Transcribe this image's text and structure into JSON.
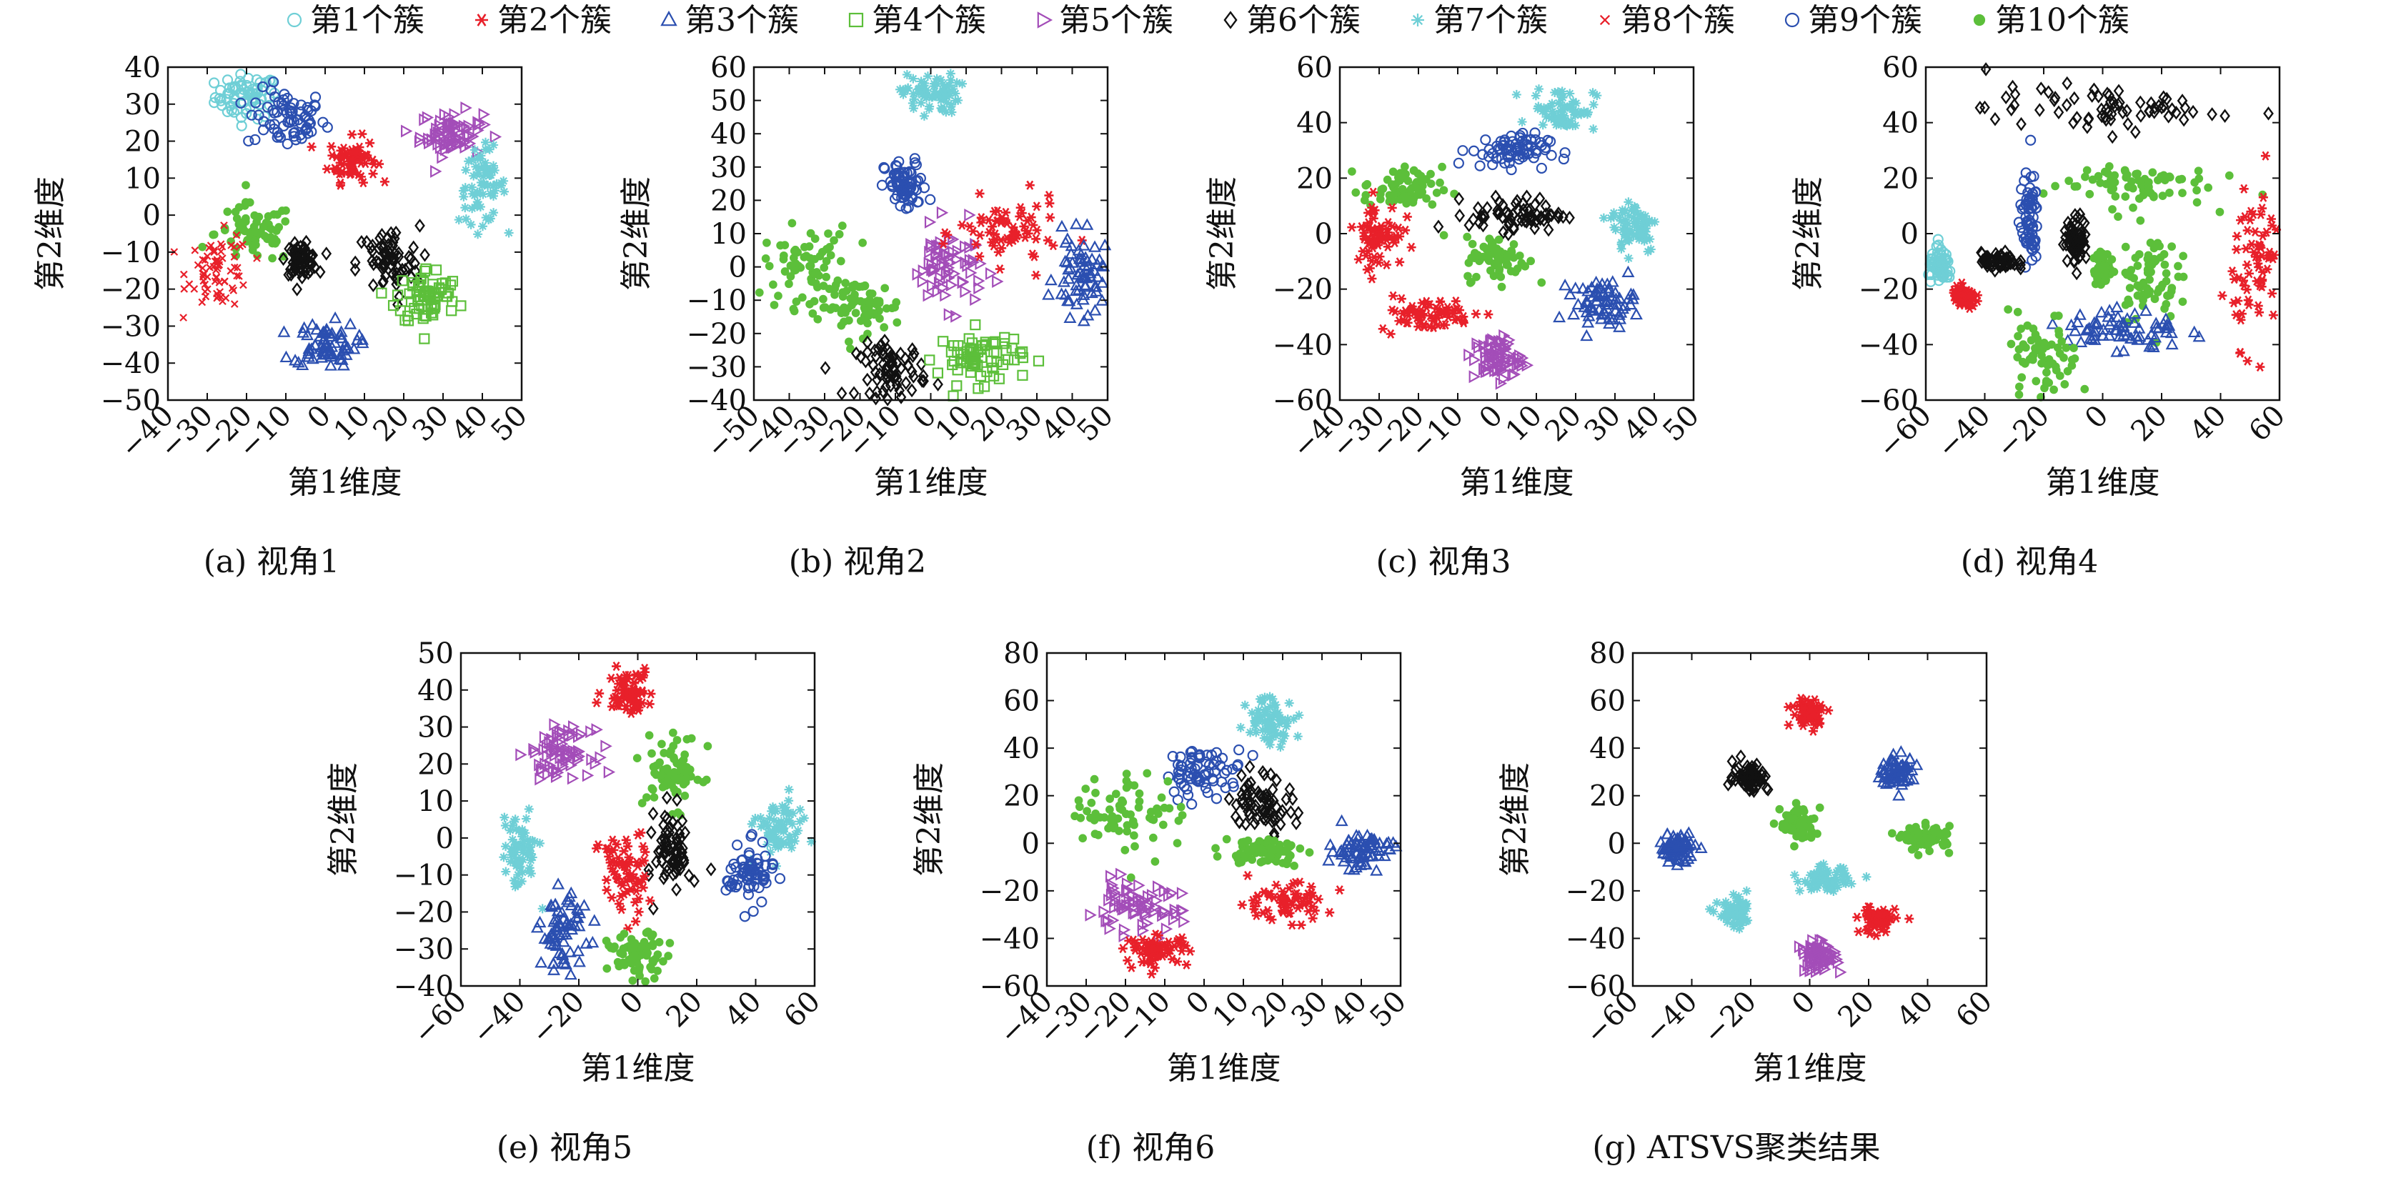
{
  "figure": {
    "legend_entries": [
      {
        "name": "第1个簇",
        "color": "#6fcfd6",
        "marker": "circle-open"
      },
      {
        "name": "第2个簇",
        "color": "#e8202a",
        "marker": "asterisk"
      },
      {
        "name": "第3个簇",
        "color": "#2b4fb0",
        "marker": "triangle-open"
      },
      {
        "name": "第4个簇",
        "color": "#5cbf3a",
        "marker": "square-open"
      },
      {
        "name": "第5个簇",
        "color": "#a34db8",
        "marker": "triangle-right-open"
      },
      {
        "name": "第6个簇",
        "color": "#111111",
        "marker": "diamond-open"
      },
      {
        "name": "第7个簇",
        "color": "#6fcfd6",
        "marker": "star"
      },
      {
        "name": "第8个簇",
        "color": "#e8202a",
        "marker": "x"
      },
      {
        "name": "第9个簇",
        "color": "#2b4fb0",
        "marker": "circle-open"
      },
      {
        "name": "第10个簇",
        "color": "#5cbf3a",
        "marker": "dot"
      }
    ]
  },
  "chart_data": [
    {
      "type": "scatter",
      "caption": "(a)  视角1",
      "xlabel": "第1维度",
      "ylabel": "第2维度",
      "xlim": [
        -40,
        50
      ],
      "ylim": [
        -50,
        40
      ],
      "xticks": [
        "−40",
        "−30",
        "−20",
        "−10",
        "0",
        "10",
        "20",
        "30",
        "40",
        "50"
      ],
      "yticks": [
        "40",
        "30",
        "20",
        "10",
        "0",
        "−10",
        "−20",
        "−30",
        "−40",
        "−50"
      ],
      "clusters": [
        {
          "label": "第1个簇",
          "cx": -20,
          "cy": 32,
          "sx": 4,
          "sy": 3
        },
        {
          "label": "第9个簇",
          "cx": -10,
          "cy": 26,
          "sx": 5,
          "sy": 4
        },
        {
          "label": "第2个簇",
          "cx": 7,
          "cy": 15,
          "sx": 3,
          "sy": 3
        },
        {
          "label": "第5个簇",
          "cx": 32,
          "cy": 22,
          "sx": 4,
          "sy": 3
        },
        {
          "label": "第7个簇",
          "cx": 40,
          "cy": 8,
          "sx": 3,
          "sy": 5
        },
        {
          "label": "第10个簇",
          "cx": -18,
          "cy": -5,
          "sx": 5,
          "sy": 4
        },
        {
          "label": "第8个簇",
          "cx": -27,
          "cy": -15,
          "sx": 4,
          "sy": 5
        },
        {
          "label": "第6个簇",
          "cx": -6,
          "cy": -12,
          "sx": 2,
          "sy": 2
        },
        {
          "label": "第6个簇",
          "cx": 16,
          "cy": -13,
          "sx": 4,
          "sy": 5
        },
        {
          "label": "第4个簇",
          "cx": 26,
          "cy": -22,
          "sx": 4,
          "sy": 4
        },
        {
          "label": "第3个簇",
          "cx": 0,
          "cy": -35,
          "sx": 4,
          "sy": 3
        }
      ]
    },
    {
      "type": "scatter",
      "caption": "(b)  视角2",
      "xlabel": "第1维度",
      "ylabel": "第2维度",
      "xlim": [
        -50,
        50
      ],
      "ylim": [
        -40,
        60
      ],
      "xticks": [
        "−50",
        "−40",
        "−30",
        "−20",
        "−10",
        "0",
        "10",
        "20",
        "30",
        "40",
        "50"
      ],
      "yticks": [
        "60",
        "50",
        "40",
        "30",
        "20",
        "10",
        "0",
        "−10",
        "−20",
        "−30",
        "−40"
      ],
      "clusters": [
        {
          "label": "第7个簇",
          "cx": 0,
          "cy": 52,
          "sx": 4,
          "sy": 3
        },
        {
          "label": "第9个簇",
          "cx": -7,
          "cy": 24,
          "sx": 3,
          "sy": 4
        },
        {
          "label": "第10个簇",
          "cx": -35,
          "cy": 0,
          "sx": 6,
          "sy": 6
        },
        {
          "label": "第10个簇",
          "cx": -20,
          "cy": -12,
          "sx": 6,
          "sy": 4
        },
        {
          "label": "第6个簇",
          "cx": -11,
          "cy": -31,
          "sx": 5,
          "sy": 4
        },
        {
          "label": "第4个簇",
          "cx": 14,
          "cy": -27,
          "sx": 6,
          "sy": 4
        },
        {
          "label": "第5个簇",
          "cx": 5,
          "cy": 0,
          "sx": 5,
          "sy": 6
        },
        {
          "label": "第2个簇",
          "cx": 22,
          "cy": 10,
          "sx": 7,
          "sy": 5
        },
        {
          "label": "第3个簇",
          "cx": 43,
          "cy": -3,
          "sx": 4,
          "sy": 6
        }
      ]
    },
    {
      "type": "scatter",
      "caption": "(c)  视角3",
      "xlabel": "第1维度",
      "ylabel": "第2维度",
      "xlim": [
        -40,
        50
      ],
      "ylim": [
        -60,
        60
      ],
      "xticks": [
        "−40",
        "−30",
        "−20",
        "−10",
        "0",
        "10",
        "20",
        "30",
        "40",
        "50"
      ],
      "yticks": [
        "60",
        "40",
        "20",
        "0",
        "−20",
        "−40",
        "−60"
      ],
      "clusters": [
        {
          "label": "第7个簇",
          "cx": 17,
          "cy": 45,
          "sx": 4,
          "sy": 4
        },
        {
          "label": "第9个簇",
          "cx": 3,
          "cy": 30,
          "sx": 5,
          "sy": 3
        },
        {
          "label": "第10个簇",
          "cx": -24,
          "cy": 16,
          "sx": 5,
          "sy": 4
        },
        {
          "label": "第6个簇",
          "cx": 5,
          "cy": 7,
          "sx": 6,
          "sy": 3
        },
        {
          "label": "第7个簇",
          "cx": 35,
          "cy": 3,
          "sx": 3,
          "sy": 5
        },
        {
          "label": "第10个簇",
          "cx": 0,
          "cy": -9,
          "sx": 4,
          "sy": 4
        },
        {
          "label": "第2个簇",
          "cx": -30,
          "cy": 0,
          "sx": 3,
          "sy": 6
        },
        {
          "label": "第2个簇",
          "cx": -18,
          "cy": -29,
          "sx": 6,
          "sy": 3
        },
        {
          "label": "第3个簇",
          "cx": 27,
          "cy": -25,
          "sx": 4,
          "sy": 4
        },
        {
          "label": "第5个簇",
          "cx": 0,
          "cy": -45,
          "sx": 3,
          "sy": 4
        }
      ]
    },
    {
      "type": "scatter",
      "caption": "(d)  视角4",
      "xlabel": "第1维度",
      "ylabel": "第2维度",
      "xlim": [
        -60,
        60
      ],
      "ylim": [
        -60,
        60
      ],
      "xticks": [
        "−60",
        "−40",
        "−20",
        "0",
        "20",
        "40",
        "60"
      ],
      "yticks": [
        "60",
        "40",
        "20",
        "0",
        "−20",
        "−40",
        "−60"
      ],
      "clusters": [
        {
          "label": "第6个簇",
          "cx": 0,
          "cy": 45,
          "sx": 20,
          "sy": 4
        },
        {
          "label": "第10个簇",
          "cx": 8,
          "cy": 18,
          "sx": 14,
          "sy": 4
        },
        {
          "label": "第9个簇",
          "cx": -25,
          "cy": 5,
          "sx": 1.5,
          "sy": 8
        },
        {
          "label": "第6个簇",
          "cx": -35,
          "cy": -10,
          "sx": 3,
          "sy": 1.5
        },
        {
          "label": "第6个簇",
          "cx": -9,
          "cy": -2,
          "sx": 2,
          "sy": 4
        },
        {
          "label": "第10个簇",
          "cx": 0,
          "cy": -13,
          "sx": 1.5,
          "sy": 3
        },
        {
          "label": "第10个簇",
          "cx": 15,
          "cy": -15,
          "sx": 5,
          "sy": 8
        },
        {
          "label": "第3个簇",
          "cx": 7,
          "cy": -35,
          "sx": 10,
          "sy": 4
        },
        {
          "label": "第10个簇",
          "cx": -20,
          "cy": -45,
          "sx": 6,
          "sy": 8
        },
        {
          "label": "第2个簇",
          "cx": 52,
          "cy": -10,
          "sx": 4,
          "sy": 14
        },
        {
          "label": "第1个簇",
          "cx": -55,
          "cy": -12,
          "sx": 2,
          "sy": 3
        },
        {
          "label": "第2个簇",
          "cx": -47,
          "cy": -23,
          "sx": 2,
          "sy": 2
        }
      ]
    },
    {
      "type": "scatter",
      "caption": "(e)  视角5",
      "xlabel": "第1维度",
      "ylabel": "第2维度",
      "xlim": [
        -60,
        60
      ],
      "ylim": [
        -40,
        50
      ],
      "xticks": [
        "−60",
        "−40",
        "−20",
        "0",
        "20",
        "40",
        "60"
      ],
      "yticks": [
        "50",
        "40",
        "30",
        "20",
        "10",
        "0",
        "−10",
        "−20",
        "−30",
        "−40"
      ],
      "clusters": [
        {
          "label": "第2个簇",
          "cx": -3,
          "cy": 40,
          "sx": 4,
          "sy": 3
        },
        {
          "label": "第5个簇",
          "cx": -26,
          "cy": 23,
          "sx": 5,
          "sy": 3
        },
        {
          "label": "第10个簇",
          "cx": 12,
          "cy": 18,
          "sx": 5,
          "sy": 5
        },
        {
          "label": "第7个簇",
          "cx": 48,
          "cy": 2,
          "sx": 4,
          "sy": 4
        },
        {
          "label": "第7个簇",
          "cx": -40,
          "cy": -4,
          "sx": 3,
          "sy": 5
        },
        {
          "label": "第6个簇",
          "cx": 12,
          "cy": -3,
          "sx": 3,
          "sy": 6
        },
        {
          "label": "第9个簇",
          "cx": 38,
          "cy": -10,
          "sx": 4,
          "sy": 4
        },
        {
          "label": "第2个簇",
          "cx": -5,
          "cy": -10,
          "sx": 4,
          "sy": 6
        },
        {
          "label": "第3个簇",
          "cx": -25,
          "cy": -25,
          "sx": 4,
          "sy": 5
        },
        {
          "label": "第10个簇",
          "cx": 0,
          "cy": -32,
          "sx": 5,
          "sy": 3
        }
      ]
    },
    {
      "type": "scatter",
      "caption": "(f)  视角6",
      "xlabel": "第1维度",
      "ylabel": "第2维度",
      "xlim": [
        -40,
        50
      ],
      "ylim": [
        -60,
        80
      ],
      "xticks": [
        "−40",
        "−30",
        "−20",
        "−10",
        "0",
        "10",
        "20",
        "30",
        "40",
        "50"
      ],
      "yticks": [
        "80",
        "60",
        "40",
        "20",
        "0",
        "−20",
        "−40",
        "−60"
      ],
      "clusters": [
        {
          "label": "第7个簇",
          "cx": 17,
          "cy": 52,
          "sx": 3,
          "sy": 5
        },
        {
          "label": "第9个簇",
          "cx": 0,
          "cy": 30,
          "sx": 5,
          "sy": 5
        },
        {
          "label": "第6个簇",
          "cx": 15,
          "cy": 18,
          "sx": 4,
          "sy": 6
        },
        {
          "label": "第10个簇",
          "cx": -20,
          "cy": 12,
          "sx": 7,
          "sy": 9
        },
        {
          "label": "第10个簇",
          "cx": 15,
          "cy": -3,
          "sx": 5,
          "sy": 3
        },
        {
          "label": "第3个簇",
          "cx": 40,
          "cy": -3,
          "sx": 4,
          "sy": 4
        },
        {
          "label": "第2个簇",
          "cx": 20,
          "cy": -25,
          "sx": 6,
          "sy": 4
        },
        {
          "label": "第5个簇",
          "cx": -18,
          "cy": -27,
          "sx": 6,
          "sy": 5
        },
        {
          "label": "第2个簇",
          "cx": -12,
          "cy": -45,
          "sx": 4,
          "sy": 3
        }
      ]
    },
    {
      "type": "scatter",
      "caption": "(g)  ATSVS聚类结果",
      "xlabel": "第1维度",
      "ylabel": "第2维度",
      "xlim": [
        -60,
        60
      ],
      "ylim": [
        -60,
        80
      ],
      "xticks": [
        "−60",
        "−40",
        "−20",
        "0",
        "20",
        "40",
        "60"
      ],
      "yticks": [
        "80",
        "60",
        "40",
        "20",
        "0",
        "−20",
        "−40",
        "−60"
      ],
      "clusters": [
        {
          "label": "第2个簇",
          "cx": 0,
          "cy": 55,
          "sx": 3,
          "sy": 3
        },
        {
          "label": "第6个簇",
          "cx": -20,
          "cy": 28,
          "sx": 3,
          "sy": 3
        },
        {
          "label": "第3个簇",
          "cx": 30,
          "cy": 30,
          "sx": 3,
          "sy": 3
        },
        {
          "label": "第10个簇",
          "cx": -4,
          "cy": 8,
          "sx": 3,
          "sy": 4
        },
        {
          "label": "第10个簇",
          "cx": 40,
          "cy": 2,
          "sx": 4,
          "sy": 2.5
        },
        {
          "label": "第3个簇",
          "cx": -45,
          "cy": -2,
          "sx": 3,
          "sy": 3
        },
        {
          "label": "第7个簇",
          "cx": 5,
          "cy": -15,
          "sx": 4,
          "sy": 2.5
        },
        {
          "label": "第7个簇",
          "cx": -25,
          "cy": -30,
          "sx": 3,
          "sy": 3
        },
        {
          "label": "第2个簇",
          "cx": 23,
          "cy": -32,
          "sx": 3,
          "sy": 3
        },
        {
          "label": "第5个簇",
          "cx": 3,
          "cy": -48,
          "sx": 3,
          "sy": 3
        }
      ]
    }
  ]
}
